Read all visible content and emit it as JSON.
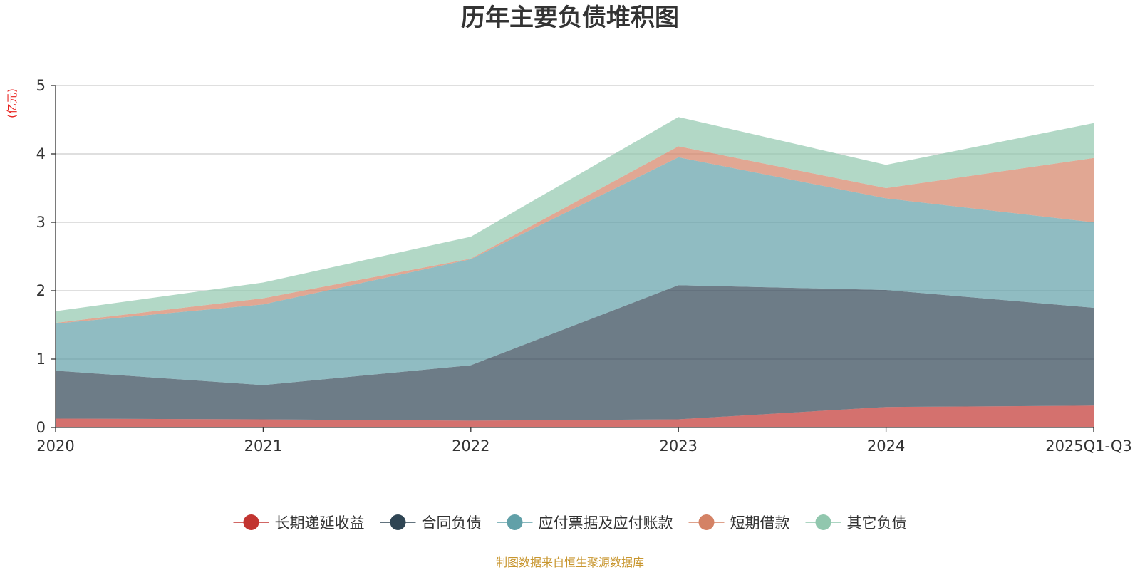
{
  "chart_data": {
    "type": "area",
    "stacked": true,
    "title": "历年主要负债堆积图",
    "unit_label": "(亿元)",
    "source_note": "制图数据来自恒生聚源数据库",
    "categories": [
      "2020",
      "2021",
      "2022",
      "2023",
      "2024",
      "2025Q1-Q3"
    ],
    "ylim": [
      0,
      5
    ],
    "yticks": [
      "0",
      "1",
      "2",
      "3",
      "4",
      "5"
    ],
    "grid": true,
    "legend_position": "bottom-center",
    "series": [
      {
        "name": "长期递延收益",
        "color": "#c23531",
        "values": [
          0.13,
          0.12,
          0.1,
          0.12,
          0.3,
          0.32
        ]
      },
      {
        "name": "合同负债",
        "color": "#2f4554",
        "values": [
          0.7,
          0.5,
          0.81,
          1.96,
          1.71,
          1.43
        ]
      },
      {
        "name": "应付票据及应付账款",
        "color": "#61a0a8",
        "values": [
          0.69,
          1.18,
          1.55,
          1.87,
          1.34,
          1.25
        ]
      },
      {
        "name": "短期借款",
        "color": "#d48265",
        "values": [
          0.01,
          0.09,
          0.01,
          0.16,
          0.15,
          0.94
        ]
      },
      {
        "name": "其它负债",
        "color": "#91c7ae",
        "values": [
          0.17,
          0.23,
          0.32,
          0.43,
          0.34,
          0.51
        ]
      }
    ]
  }
}
